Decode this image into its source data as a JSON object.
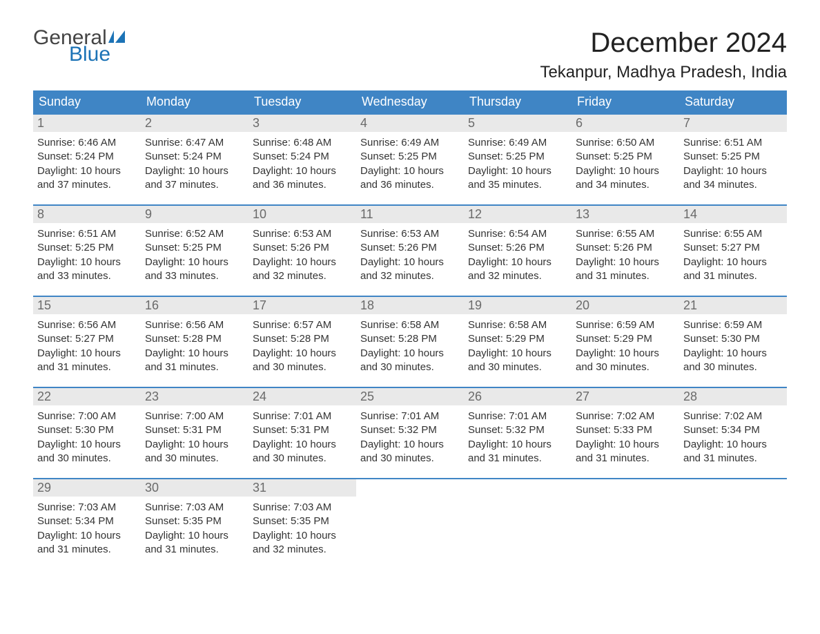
{
  "logo": {
    "text1": "General",
    "text2": "Blue",
    "flag_color": "#1c73b6"
  },
  "title": "December 2024",
  "location": "Tekanpur, Madhya Pradesh, India",
  "colors": {
    "header_bg": "#3f85c5",
    "header_text": "#ffffff",
    "daynum_bg": "#e9e9e9",
    "daynum_text": "#6a6a6a",
    "body_text": "#333333",
    "week_border": "#3f85c5",
    "background": "#ffffff"
  },
  "day_names": [
    "Sunday",
    "Monday",
    "Tuesday",
    "Wednesday",
    "Thursday",
    "Friday",
    "Saturday"
  ],
  "weeks": [
    [
      {
        "n": "1",
        "sunrise": "6:46 AM",
        "sunset": "5:24 PM",
        "daylight": "10 hours and 37 minutes."
      },
      {
        "n": "2",
        "sunrise": "6:47 AM",
        "sunset": "5:24 PM",
        "daylight": "10 hours and 37 minutes."
      },
      {
        "n": "3",
        "sunrise": "6:48 AM",
        "sunset": "5:24 PM",
        "daylight": "10 hours and 36 minutes."
      },
      {
        "n": "4",
        "sunrise": "6:49 AM",
        "sunset": "5:25 PM",
        "daylight": "10 hours and 36 minutes."
      },
      {
        "n": "5",
        "sunrise": "6:49 AM",
        "sunset": "5:25 PM",
        "daylight": "10 hours and 35 minutes."
      },
      {
        "n": "6",
        "sunrise": "6:50 AM",
        "sunset": "5:25 PM",
        "daylight": "10 hours and 34 minutes."
      },
      {
        "n": "7",
        "sunrise": "6:51 AM",
        "sunset": "5:25 PM",
        "daylight": "10 hours and 34 minutes."
      }
    ],
    [
      {
        "n": "8",
        "sunrise": "6:51 AM",
        "sunset": "5:25 PM",
        "daylight": "10 hours and 33 minutes."
      },
      {
        "n": "9",
        "sunrise": "6:52 AM",
        "sunset": "5:25 PM",
        "daylight": "10 hours and 33 minutes."
      },
      {
        "n": "10",
        "sunrise": "6:53 AM",
        "sunset": "5:26 PM",
        "daylight": "10 hours and 32 minutes."
      },
      {
        "n": "11",
        "sunrise": "6:53 AM",
        "sunset": "5:26 PM",
        "daylight": "10 hours and 32 minutes."
      },
      {
        "n": "12",
        "sunrise": "6:54 AM",
        "sunset": "5:26 PM",
        "daylight": "10 hours and 32 minutes."
      },
      {
        "n": "13",
        "sunrise": "6:55 AM",
        "sunset": "5:26 PM",
        "daylight": "10 hours and 31 minutes."
      },
      {
        "n": "14",
        "sunrise": "6:55 AM",
        "sunset": "5:27 PM",
        "daylight": "10 hours and 31 minutes."
      }
    ],
    [
      {
        "n": "15",
        "sunrise": "6:56 AM",
        "sunset": "5:27 PM",
        "daylight": "10 hours and 31 minutes."
      },
      {
        "n": "16",
        "sunrise": "6:56 AM",
        "sunset": "5:28 PM",
        "daylight": "10 hours and 31 minutes."
      },
      {
        "n": "17",
        "sunrise": "6:57 AM",
        "sunset": "5:28 PM",
        "daylight": "10 hours and 30 minutes."
      },
      {
        "n": "18",
        "sunrise": "6:58 AM",
        "sunset": "5:28 PM",
        "daylight": "10 hours and 30 minutes."
      },
      {
        "n": "19",
        "sunrise": "6:58 AM",
        "sunset": "5:29 PM",
        "daylight": "10 hours and 30 minutes."
      },
      {
        "n": "20",
        "sunrise": "6:59 AM",
        "sunset": "5:29 PM",
        "daylight": "10 hours and 30 minutes."
      },
      {
        "n": "21",
        "sunrise": "6:59 AM",
        "sunset": "5:30 PM",
        "daylight": "10 hours and 30 minutes."
      }
    ],
    [
      {
        "n": "22",
        "sunrise": "7:00 AM",
        "sunset": "5:30 PM",
        "daylight": "10 hours and 30 minutes."
      },
      {
        "n": "23",
        "sunrise": "7:00 AM",
        "sunset": "5:31 PM",
        "daylight": "10 hours and 30 minutes."
      },
      {
        "n": "24",
        "sunrise": "7:01 AM",
        "sunset": "5:31 PM",
        "daylight": "10 hours and 30 minutes."
      },
      {
        "n": "25",
        "sunrise": "7:01 AM",
        "sunset": "5:32 PM",
        "daylight": "10 hours and 30 minutes."
      },
      {
        "n": "26",
        "sunrise": "7:01 AM",
        "sunset": "5:32 PM",
        "daylight": "10 hours and 31 minutes."
      },
      {
        "n": "27",
        "sunrise": "7:02 AM",
        "sunset": "5:33 PM",
        "daylight": "10 hours and 31 minutes."
      },
      {
        "n": "28",
        "sunrise": "7:02 AM",
        "sunset": "5:34 PM",
        "daylight": "10 hours and 31 minutes."
      }
    ],
    [
      {
        "n": "29",
        "sunrise": "7:03 AM",
        "sunset": "5:34 PM",
        "daylight": "10 hours and 31 minutes."
      },
      {
        "n": "30",
        "sunrise": "7:03 AM",
        "sunset": "5:35 PM",
        "daylight": "10 hours and 31 minutes."
      },
      {
        "n": "31",
        "sunrise": "7:03 AM",
        "sunset": "5:35 PM",
        "daylight": "10 hours and 32 minutes."
      },
      null,
      null,
      null,
      null
    ]
  ],
  "labels": {
    "sunrise": "Sunrise: ",
    "sunset": "Sunset: ",
    "daylight": "Daylight: "
  }
}
